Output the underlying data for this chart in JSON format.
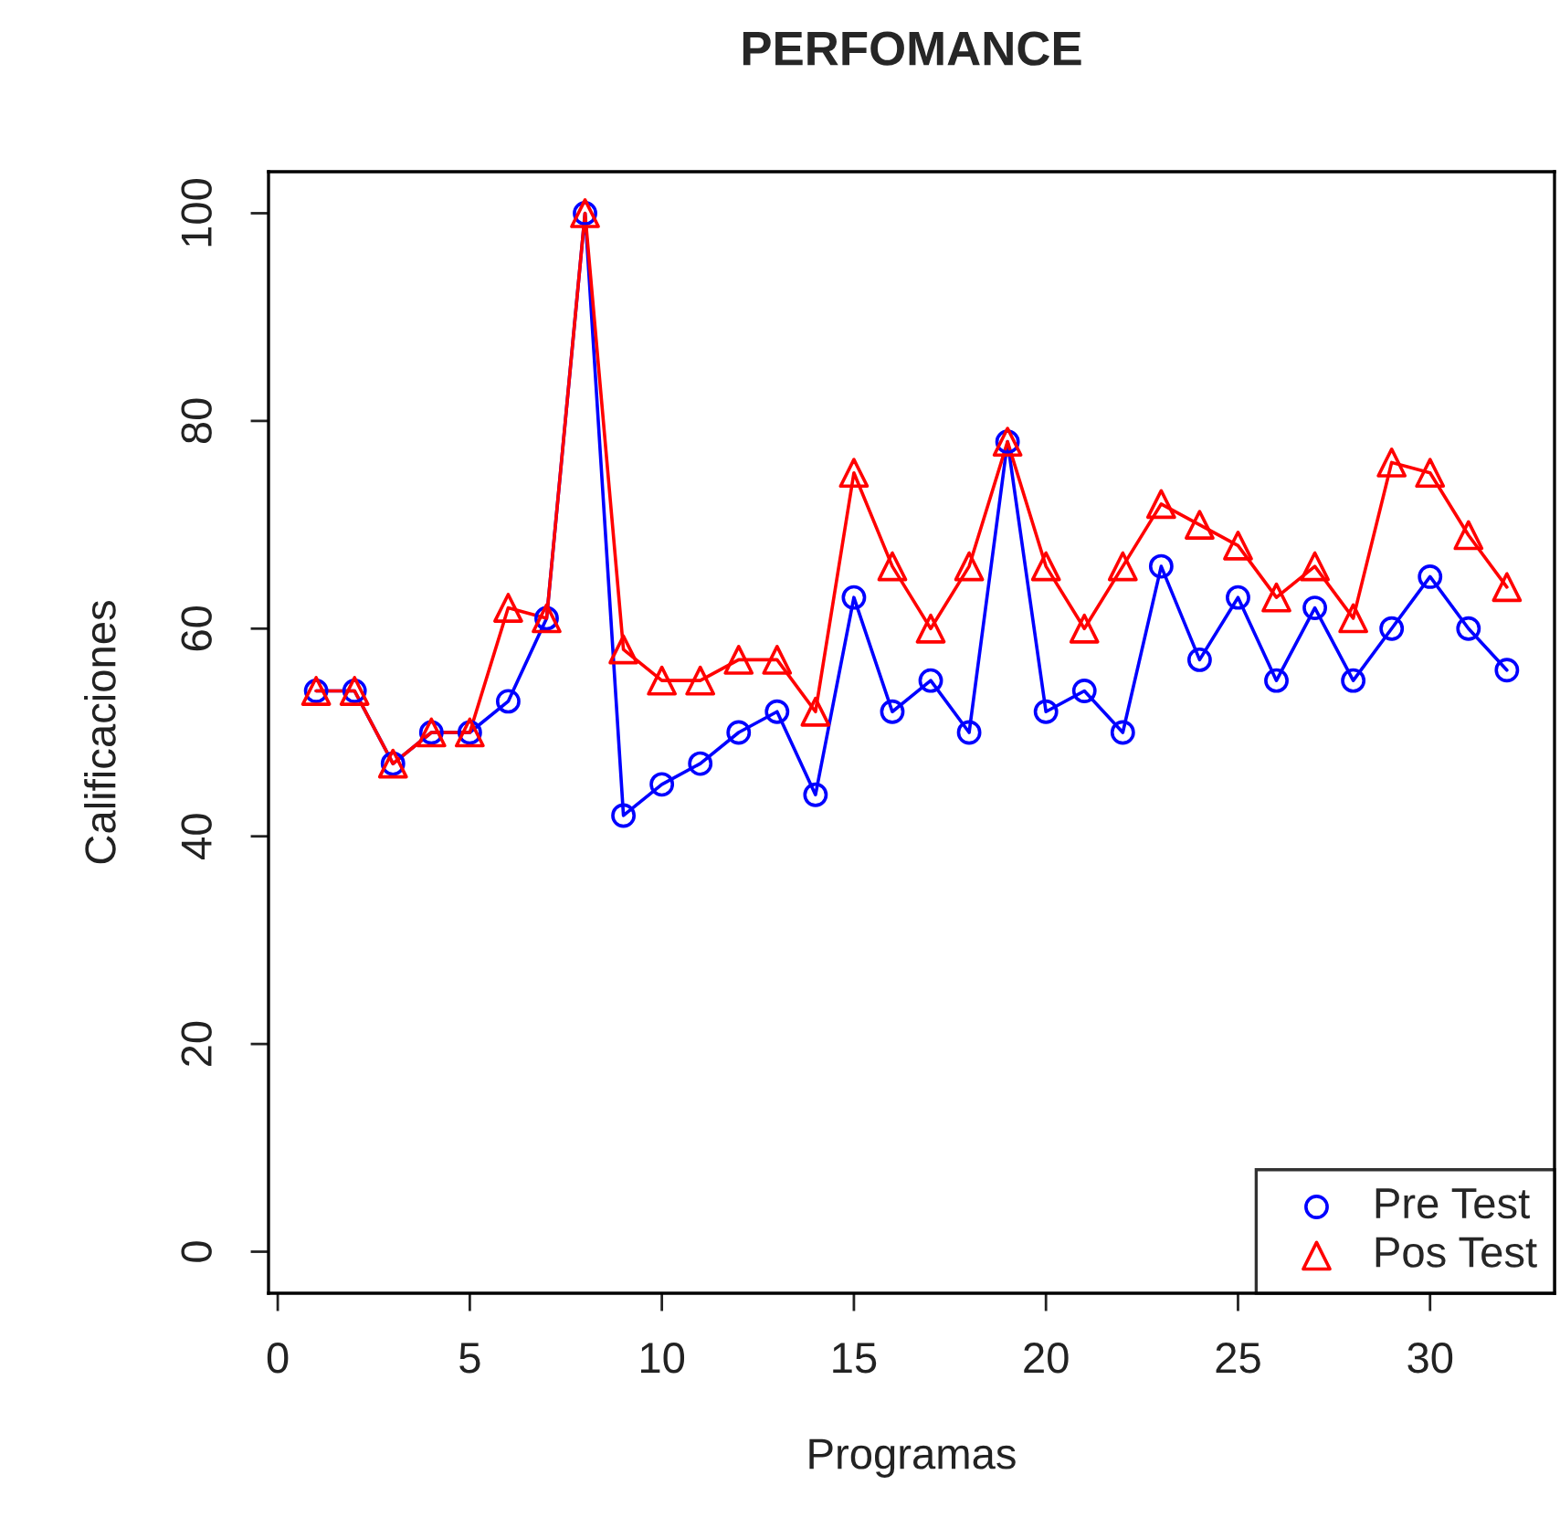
{
  "chart_data": {
    "type": "line",
    "title": "PERFOMANCE",
    "xlabel": "Programas",
    "ylabel": "Calificaciones",
    "x": [
      1,
      2,
      3,
      4,
      5,
      6,
      7,
      8,
      9,
      10,
      11,
      12,
      13,
      14,
      15,
      16,
      17,
      18,
      19,
      20,
      21,
      22,
      23,
      24,
      25,
      26,
      27,
      28,
      29,
      30,
      31,
      32
    ],
    "series": [
      {
        "name": "Pre Test",
        "color": "#0000ff",
        "marker": "circle",
        "values": [
          54,
          54,
          47,
          50,
          50,
          53,
          61,
          100,
          42,
          45,
          47,
          50,
          52,
          44,
          63,
          52,
          55,
          50,
          78,
          52,
          54,
          50,
          66,
          57,
          63,
          55,
          62,
          55,
          60,
          65,
          60,
          56
        ]
      },
      {
        "name": "Pos Test",
        "color": "#ff0000",
        "marker": "triangle",
        "values": [
          54,
          54,
          47,
          50,
          50,
          62,
          61,
          100,
          58,
          55,
          55,
          57,
          57,
          52,
          75,
          66,
          60,
          66,
          78,
          66,
          60,
          66,
          72,
          70,
          68,
          63,
          66,
          61,
          76,
          75,
          69,
          64
        ]
      }
    ],
    "xlim": [
      -0.24,
      33.24
    ],
    "ylim": [
      -4,
      104
    ],
    "xticks": [
      0,
      5,
      10,
      15,
      20,
      25,
      30
    ],
    "yticks": [
      0,
      20,
      40,
      60,
      80,
      100
    ],
    "grid": false,
    "legend": "bottom right",
    "line_style": "solid"
  }
}
